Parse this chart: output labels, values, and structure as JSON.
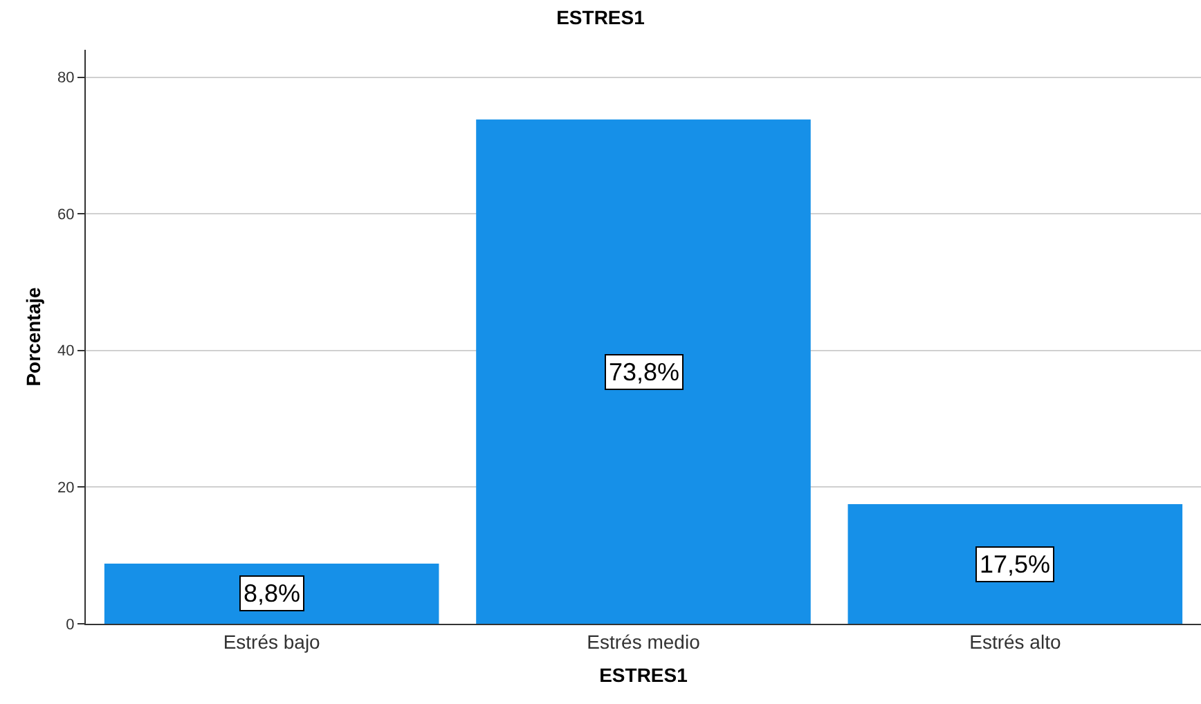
{
  "chart_data": {
    "type": "bar",
    "title": "ESTRES1",
    "xlabel": "ESTRES1",
    "ylabel": "Porcentaje",
    "categories": [
      "Estrés bajo",
      "Estrés medio",
      "Estrés alto"
    ],
    "values": [
      8.8,
      73.8,
      17.5
    ],
    "value_labels": [
      "8,8%",
      "73,8%",
      "17,5%"
    ],
    "color": "#1690e8",
    "ylim": [
      0,
      84
    ],
    "yticks": [
      0,
      20,
      40,
      60,
      80
    ],
    "grid": "y",
    "legend": false
  }
}
